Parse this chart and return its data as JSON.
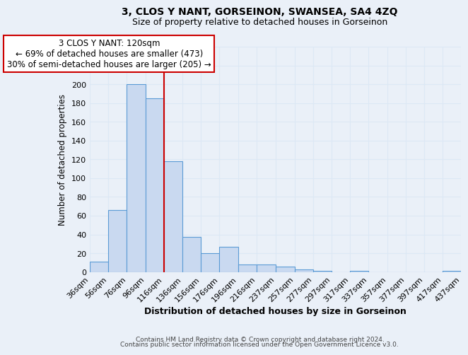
{
  "title": "3, CLOS Y NANT, GORSEINON, SWANSEA, SA4 4ZQ",
  "subtitle": "Size of property relative to detached houses in Gorseinon",
  "xlabel": "Distribution of detached houses by size in Gorseinon",
  "ylabel": "Number of detached properties",
  "bar_edges": [
    36,
    56,
    76,
    96,
    116,
    136,
    156,
    176,
    196,
    216,
    237,
    257,
    277,
    297,
    317,
    337,
    357,
    377,
    397,
    417,
    437
  ],
  "bar_heights": [
    11,
    66,
    200,
    185,
    118,
    37,
    20,
    27,
    8,
    8,
    6,
    3,
    1,
    0,
    1,
    0,
    0,
    0,
    0,
    1
  ],
  "bar_color": "#c9d9f0",
  "bar_edge_color": "#5b9bd5",
  "tick_labels": [
    "36sqm",
    "56sqm",
    "76sqm",
    "96sqm",
    "116sqm",
    "136sqm",
    "156sqm",
    "176sqm",
    "196sqm",
    "216sqm",
    "237sqm",
    "257sqm",
    "277sqm",
    "297sqm",
    "317sqm",
    "337sqm",
    "357sqm",
    "377sqm",
    "397sqm",
    "417sqm",
    "437sqm"
  ],
  "ylim": [
    0,
    240
  ],
  "yticks": [
    0,
    20,
    40,
    60,
    80,
    100,
    120,
    140,
    160,
    180,
    200,
    220,
    240
  ],
  "vline_x": 116,
  "vline_color": "#cc0000",
  "annotation_title": "3 CLOS Y NANT: 120sqm",
  "annotation_line1": "← 69% of detached houses are smaller (473)",
  "annotation_line2": "30% of semi-detached houses are larger (205) →",
  "annotation_box_color": "#ffffff",
  "annotation_border_color": "#cc0000",
  "footer_line1": "Contains HM Land Registry data © Crown copyright and database right 2024.",
  "footer_line2": "Contains public sector information licensed under the Open Government Licence v3.0.",
  "background_color": "#eaf0f8",
  "grid_color": "#dce8f5",
  "title_fontsize": 10,
  "subtitle_fontsize": 9
}
